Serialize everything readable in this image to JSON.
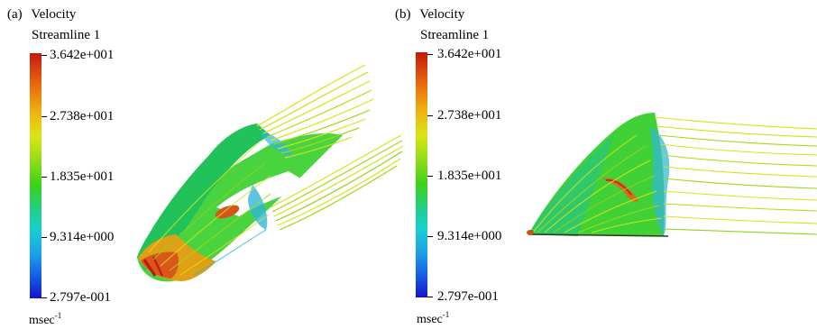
{
  "panel_a": {
    "label": "(a)",
    "title_line1": "Velocity",
    "title_line2": "Streamline 1",
    "scale": [
      "3.642e+001",
      "2.738e+001",
      "1.835e+001",
      "9.314e+000",
      "2.797e-001"
    ],
    "unit": "msec",
    "unit_exp": "-1"
  },
  "panel_b": {
    "label": "(b)",
    "title_line1": "Velocity",
    "title_line2": "Streamline 1",
    "scale": [
      "3.642e+001",
      "2.738e+001",
      "1.835e+001",
      "9.314e+000",
      "2.797e-001"
    ],
    "unit": "msec",
    "unit_exp": "-1"
  },
  "colors": {
    "high": "#c21a0c",
    "upper": "#d9e615",
    "mid": "#3bd219",
    "lower": "#18d0cf",
    "low": "#1614c8"
  }
}
